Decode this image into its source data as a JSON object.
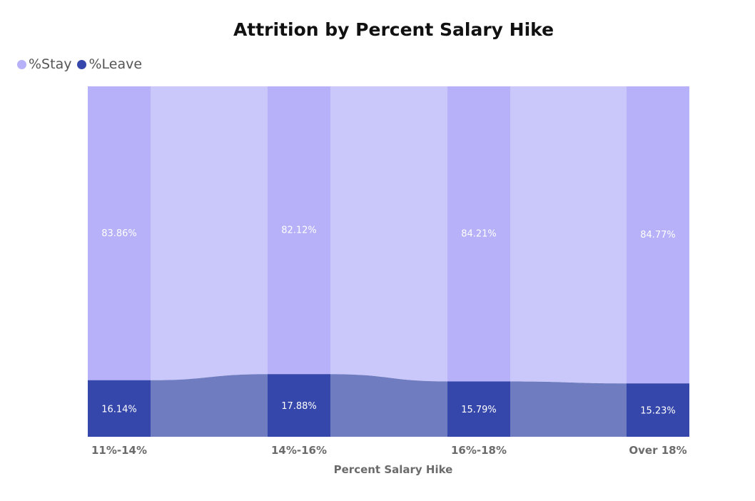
{
  "chart_data": {
    "type": "bar",
    "title": "Attrition by Percent Salary Hike",
    "xlabel": "Percent Salary Hike",
    "ylabel": "",
    "ylim": [
      0,
      100
    ],
    "stacked": "100%",
    "ribbons": true,
    "legend_position": "top-left",
    "grid": false,
    "categories": [
      "11%-14%",
      "14%-16%",
      "16%-18%",
      "Over 18%"
    ],
    "series": [
      {
        "name": "%Stay",
        "values": [
          83.86,
          82.12,
          84.21,
          84.77
        ],
        "labels": [
          "83.86%",
          "82.12%",
          "84.21%",
          "84.77%"
        ],
        "color": "#b6b1f8",
        "ribbon_color": "#cac8fa"
      },
      {
        "name": "%Leave",
        "values": [
          16.14,
          17.88,
          15.79,
          15.23
        ],
        "labels": [
          "16.14%",
          "17.88%",
          "15.79%",
          "15.23%"
        ],
        "color": "#3547aa",
        "ribbon_color": "#6f7dc0"
      }
    ]
  }
}
